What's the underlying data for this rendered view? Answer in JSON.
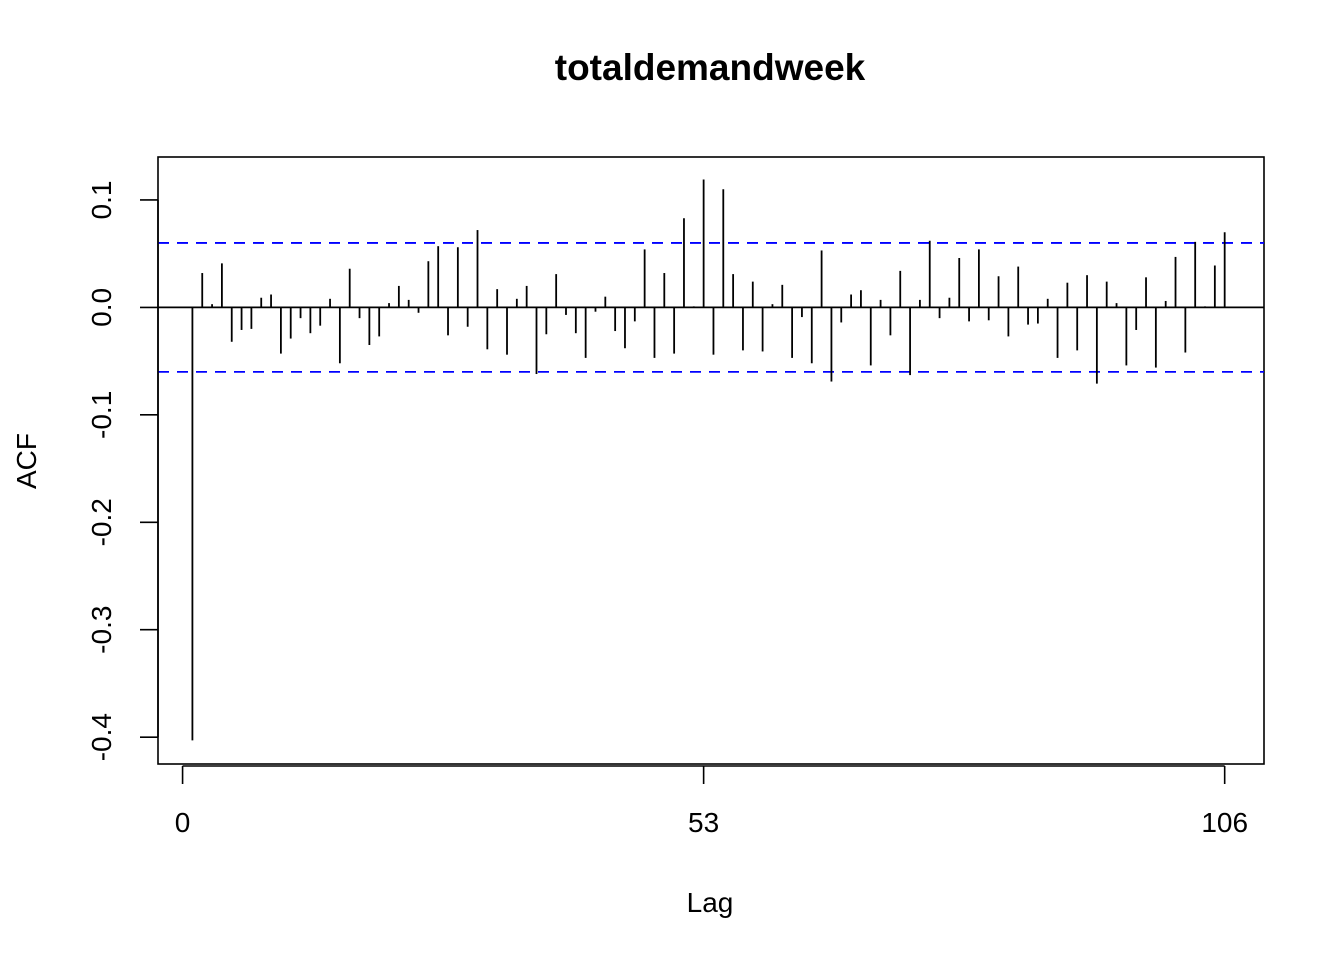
{
  "chart_data": {
    "type": "bar",
    "title": "totaldemandweek",
    "xlabel": "Lag",
    "ylabel": "ACF",
    "xlim": [
      -2.5,
      110
    ],
    "ylim": [
      -0.425,
      0.14
    ],
    "x_ticks": [
      0,
      53,
      106
    ],
    "x_tick_labels": [
      "0",
      "53",
      "106"
    ],
    "y_ticks": [
      -0.4,
      -0.3,
      -0.2,
      -0.1,
      0.0,
      0.1
    ],
    "y_tick_labels": [
      "-0.4",
      "-0.3",
      "-0.2",
      "-0.1",
      "0.0",
      "0.1"
    ],
    "confidence_bound": 0.06,
    "colors": {
      "bars": "#000000",
      "bounds": "#0000ff",
      "zero_line": "#000000"
    },
    "lags": [
      1,
      2,
      3,
      4,
      5,
      6,
      7,
      8,
      9,
      10,
      11,
      12,
      13,
      14,
      15,
      16,
      17,
      18,
      19,
      20,
      21,
      22,
      23,
      24,
      25,
      26,
      27,
      28,
      29,
      30,
      31,
      32,
      33,
      34,
      35,
      36,
      37,
      38,
      39,
      40,
      41,
      42,
      43,
      44,
      45,
      46,
      47,
      48,
      49,
      50,
      51,
      52,
      53,
      54,
      55,
      56,
      57,
      58,
      59,
      60,
      61,
      62,
      63,
      64,
      65,
      66,
      67,
      68,
      69,
      70,
      71,
      72,
      73,
      74,
      75,
      76,
      77,
      78,
      79,
      80,
      81,
      82,
      83,
      84,
      85,
      86,
      87,
      88,
      89,
      90,
      91,
      92,
      93,
      94,
      95,
      96,
      97,
      98,
      99,
      100,
      101,
      102,
      103,
      104,
      105,
      106
    ],
    "values": [
      -0.403,
      0.032,
      0.003,
      0.041,
      -0.032,
      -0.021,
      -0.02,
      0.009,
      0.012,
      -0.043,
      -0.029,
      -0.01,
      -0.024,
      -0.017,
      0.008,
      -0.052,
      0.036,
      -0.01,
      -0.035,
      -0.027,
      0.004,
      0.02,
      0.007,
      -0.005,
      0.043,
      0.057,
      -0.026,
      0.056,
      -0.018,
      0.072,
      -0.039,
      0.017,
      -0.044,
      0.008,
      0.02,
      -0.062,
      -0.025,
      0.031,
      -0.007,
      -0.024,
      -0.047,
      -0.004,
      0.01,
      -0.022,
      -0.038,
      -0.013,
      0.054,
      -0.047,
      0.032,
      -0.043,
      0.083,
      0.001,
      0.119,
      -0.044,
      0.11,
      0.031,
      -0.04,
      0.024,
      -0.041,
      0.003,
      0.021,
      -0.047,
      -0.009,
      -0.052,
      0.053,
      -0.069,
      -0.014,
      0.012,
      0.016,
      -0.054,
      0.007,
      -0.026,
      0.034,
      -0.063,
      0.007,
      0.062,
      -0.01,
      0.009,
      0.046,
      -0.013,
      0.054,
      -0.012,
      0.029,
      -0.027,
      0.038,
      -0.016,
      -0.015,
      0.008,
      -0.047,
      0.023,
      -0.04,
      0.03,
      -0.071,
      0.024,
      0.004,
      -0.054,
      -0.021,
      0.028,
      -0.056,
      0.006,
      0.047,
      -0.042,
      0.061,
      0.001,
      0.039,
      0.07
    ]
  }
}
